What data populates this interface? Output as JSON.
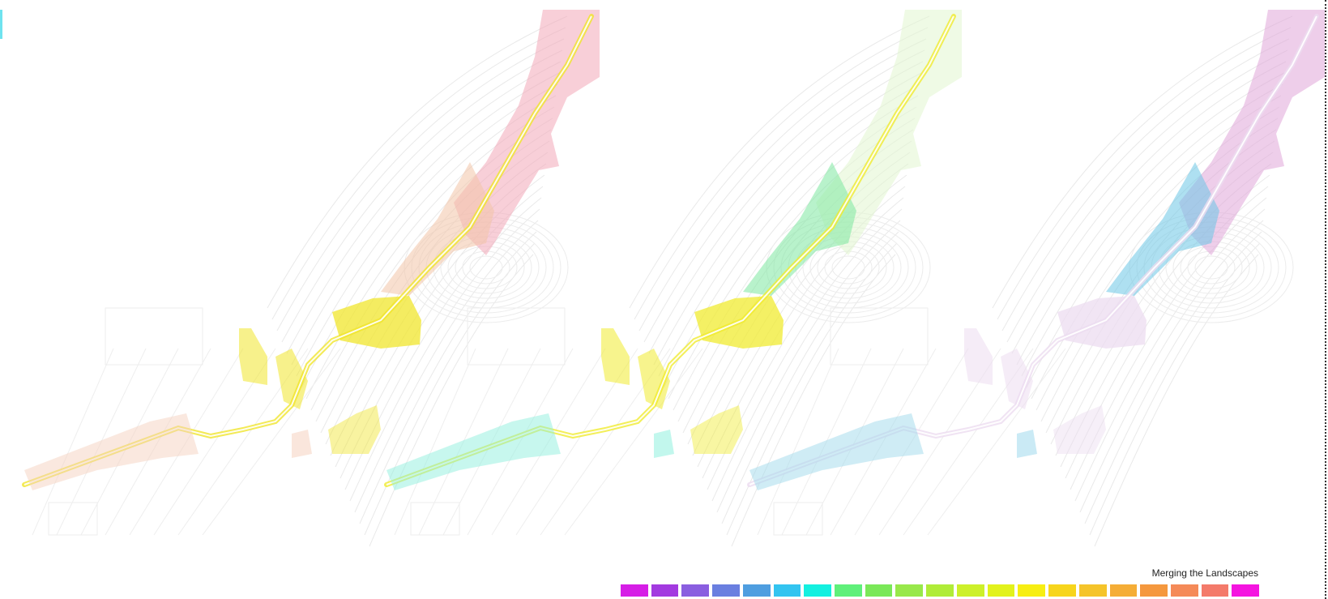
{
  "legend": {
    "title": "Merging the Landscapes",
    "swatches": [
      "#d61ee6",
      "#a33ae0",
      "#8a5ee0",
      "#6a7fe0",
      "#4f9ee0",
      "#33c4f0",
      "#14f0e0",
      "#5ff07a",
      "#7ae858",
      "#98e84a",
      "#b0ec38",
      "#cdf02a",
      "#e2f21c",
      "#f7ee12",
      "#f7d51c",
      "#f5c42a",
      "#f5ad36",
      "#f5983e",
      "#f58a58",
      "#f47a6a",
      "#f514e0"
    ]
  },
  "panels": [
    {
      "name": "panel-left",
      "head_color": "#f2a7b8",
      "mid_color": "#f2c4a8",
      "core_color": "#f0e52c",
      "tail_color": "#f5d2bf"
    },
    {
      "name": "panel-middle",
      "head_color": "#e2f5cf",
      "mid_color": "#7ee8a0",
      "core_color": "#f0eb30",
      "tail_color": "#8ff0de"
    },
    {
      "name": "panel-right",
      "head_color": "#e0a6d8",
      "mid_color": "#6cc6e6",
      "core_color": "#ecdcf0",
      "tail_color": "#9fd9ec"
    }
  ]
}
